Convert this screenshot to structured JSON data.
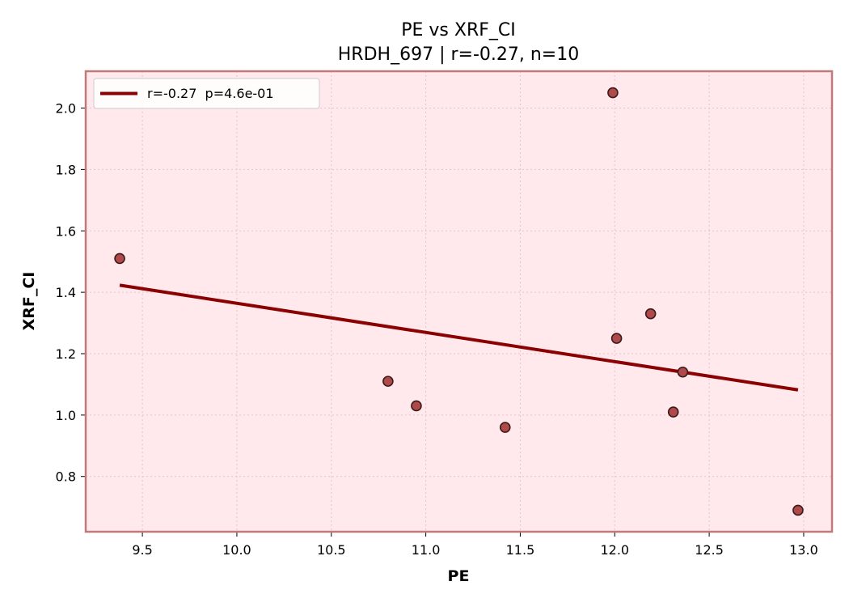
{
  "chart_data": {
    "type": "scatter",
    "title": "PE vs XRF_CI",
    "subtitle": "HRDH_697 | r=-0.27, n=10",
    "xlabel": "PE",
    "ylabel": "XRF_CI",
    "xlim": [
      9.2,
      13.15
    ],
    "ylim": [
      0.62,
      2.12
    ],
    "xticks": [
      "9.5",
      "10.0",
      "10.5",
      "11.0",
      "11.5",
      "12.0",
      "12.5",
      "13.0"
    ],
    "yticks": [
      "0.8",
      "1.0",
      "1.2",
      "1.4",
      "1.6",
      "1.8",
      "2.0"
    ],
    "grid": true,
    "legend_position": "top-left",
    "points": [
      {
        "x": 9.38,
        "y": 1.51
      },
      {
        "x": 10.8,
        "y": 1.11
      },
      {
        "x": 10.95,
        "y": 1.03
      },
      {
        "x": 11.42,
        "y": 0.96
      },
      {
        "x": 11.99,
        "y": 2.05
      },
      {
        "x": 12.01,
        "y": 1.25
      },
      {
        "x": 12.19,
        "y": 1.33
      },
      {
        "x": 12.31,
        "y": 1.01
      },
      {
        "x": 12.36,
        "y": 1.14
      },
      {
        "x": 12.97,
        "y": 0.69
      }
    ],
    "fit_line": {
      "label": "r=-0.27  p=4.6e-01",
      "x": [
        9.38,
        12.97
      ],
      "y": [
        1.423,
        1.082
      ]
    },
    "colors": {
      "background": "#ffe9ec",
      "frame": "#c07a7a",
      "marker_fill": "#b04a4a",
      "marker_edge": "#3a1a1a",
      "fit_line": "#8b0000",
      "grid": "#e6c3c8"
    }
  }
}
